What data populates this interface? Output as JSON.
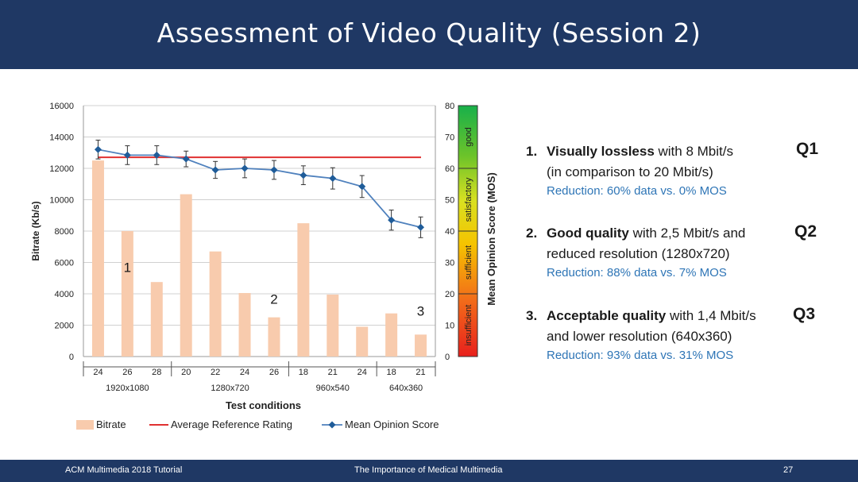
{
  "slide": {
    "title": "Assessment of Video Quality (Session 2)",
    "footer_left": "ACM Multimedia 2018 Tutorial",
    "footer_center": "The Importance of Medical Multimedia",
    "footer_page": "27"
  },
  "chart_data": {
    "type": "bar",
    "xlabel": "Test conditions",
    "ylabel": "Bitrate (Kb/s)",
    "y2label": "Mean Opinion Score (MOS)",
    "ylim": [
      0,
      16000
    ],
    "y2lim": [
      0,
      80
    ],
    "yticks": [
      "0",
      "2000",
      "4000",
      "6000",
      "8000",
      "10000",
      "12000",
      "14000",
      "16000"
    ],
    "y2ticks": [
      "0",
      "10",
      "20",
      "30",
      "40",
      "50",
      "60",
      "70",
      "80"
    ],
    "categories": [
      "24",
      "26",
      "28",
      "20",
      "22",
      "24",
      "26",
      "18",
      "21",
      "24",
      "18",
      "21"
    ],
    "groups": [
      {
        "label": "1920x1080",
        "count": 3
      },
      {
        "label": "1280x720",
        "count": 4
      },
      {
        "label": "960x540",
        "count": 3
      },
      {
        "label": "640x360",
        "count": 2
      }
    ],
    "series": [
      {
        "name": "Bitrate",
        "kind": "bar",
        "axis": "left",
        "color": "#f8cbad",
        "values": [
          12500,
          8000,
          4750,
          10350,
          6700,
          4050,
          2500,
          8500,
          3950,
          1900,
          2750,
          1400
        ]
      },
      {
        "name": "Average Reference Rating",
        "kind": "line",
        "axis": "right",
        "color": "#e03131",
        "values": [
          63.5,
          63.5,
          63.5,
          63.5,
          63.5,
          63.5,
          63.5,
          63.5,
          63.5,
          63.5,
          63.5,
          63.5
        ]
      },
      {
        "name": "Mean Opinion Score",
        "kind": "line-marker",
        "axis": "right",
        "color": "#1f5c99",
        "values": [
          66,
          64.2,
          64.2,
          63,
          59.5,
          60,
          59.5,
          57.8,
          56.8,
          54.2,
          43.5,
          41.2
        ],
        "errors": [
          3,
          3,
          3,
          2.5,
          2.7,
          3,
          3,
          3,
          3.4,
          3.5,
          3.2,
          3.3
        ]
      }
    ],
    "annotations": [
      {
        "text": "1",
        "x_index": 1,
        "y": 27
      },
      {
        "text": "2",
        "x_index": 6,
        "y": 16.8
      },
      {
        "text": "3",
        "x_index": 11,
        "y": 13
      }
    ],
    "quality_scale": [
      {
        "label": "insufficient",
        "from": 0,
        "to": 20
      },
      {
        "label": "sufficient",
        "from": 20,
        "to": 40
      },
      {
        "label": "satisfactory",
        "from": 40,
        "to": 60
      },
      {
        "label": "good",
        "from": 60,
        "to": 80
      }
    ],
    "grid": true,
    "legend_position": "bottom"
  },
  "points": [
    {
      "num": "1.",
      "bold": "Visually lossless",
      "rest1": " with 8 Mbit/s",
      "line2": "(in comparison to 20 Mbit/s)",
      "reduction": "Reduction: 60% data vs. 0% MOS",
      "q": "Q1"
    },
    {
      "num": "2.",
      "bold": "Good quality",
      "rest1": " with 2,5 Mbit/s and",
      "line2": "reduced resolution (1280x720)",
      "reduction": "Reduction: 88% data vs. 7% MOS",
      "q": "Q2"
    },
    {
      "num": "3.",
      "bold": "Acceptable quality",
      "rest1": " with 1,4 Mbit/s",
      "line2": "and lower resolution (640x360)",
      "reduction": "Reduction: 93% data vs. 31% MOS",
      "q": "Q3"
    }
  ]
}
